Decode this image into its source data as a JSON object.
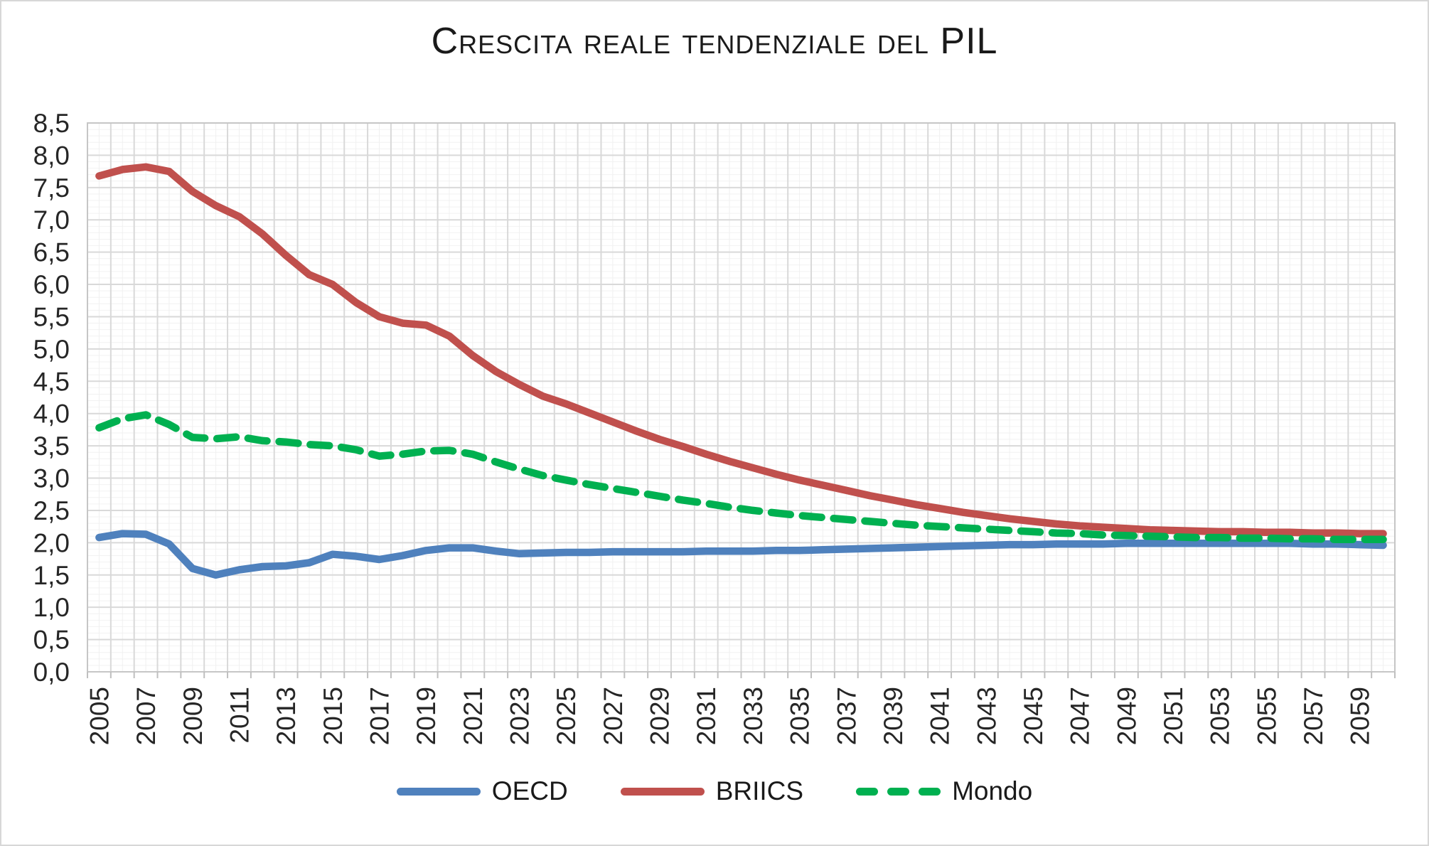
{
  "title": "Crescita reale tendenziale del PIL",
  "chart_data": {
    "type": "line",
    "x": [
      2005,
      2006,
      2007,
      2008,
      2009,
      2010,
      2011,
      2012,
      2013,
      2014,
      2015,
      2016,
      2017,
      2018,
      2019,
      2020,
      2021,
      2022,
      2023,
      2024,
      2025,
      2026,
      2027,
      2028,
      2029,
      2030,
      2031,
      2032,
      2033,
      2034,
      2035,
      2036,
      2037,
      2038,
      2039,
      2040,
      2041,
      2042,
      2043,
      2044,
      2045,
      2046,
      2047,
      2048,
      2049,
      2050,
      2051,
      2052,
      2053,
      2054,
      2055,
      2056,
      2057,
      2058,
      2059,
      2060
    ],
    "x_tick_labels": [
      "2005",
      "2007",
      "2009",
      "2011",
      "2013",
      "2015",
      "2017",
      "2019",
      "2021",
      "2023",
      "2025",
      "2027",
      "2029",
      "2031",
      "2033",
      "2035",
      "2037",
      "2039",
      "2041",
      "2043",
      "2045",
      "2047",
      "2049",
      "2051",
      "2053",
      "2055",
      "2057",
      "2059"
    ],
    "y_tick_labels": [
      "0,0",
      "0,5",
      "1,0",
      "1,5",
      "2,0",
      "2,5",
      "3,0",
      "3,5",
      "4,0",
      "4,5",
      "5,0",
      "5,5",
      "6,0",
      "6,5",
      "7,0",
      "7,5",
      "8,0",
      "8,5"
    ],
    "ylim": [
      0,
      8.5
    ],
    "grid": true,
    "legend_position": "bottom",
    "series": [
      {
        "name": "OECD",
        "color": "#4F81BD",
        "style": "solid",
        "values": [
          2.08,
          2.14,
          2.13,
          1.98,
          1.6,
          1.5,
          1.58,
          1.63,
          1.64,
          1.69,
          1.82,
          1.79,
          1.74,
          1.8,
          1.88,
          1.92,
          1.92,
          1.87,
          1.83,
          1.84,
          1.85,
          1.85,
          1.86,
          1.86,
          1.86,
          1.86,
          1.87,
          1.87,
          1.87,
          1.88,
          1.88,
          1.89,
          1.9,
          1.91,
          1.92,
          1.93,
          1.94,
          1.95,
          1.96,
          1.97,
          1.97,
          1.98,
          1.98,
          1.98,
          1.99,
          1.99,
          1.99,
          1.99,
          1.99,
          1.99,
          1.99,
          1.99,
          1.98,
          1.98,
          1.97,
          1.96
        ]
      },
      {
        "name": "BRIICS",
        "color": "#C0504D",
        "style": "solid",
        "values": [
          7.68,
          7.78,
          7.82,
          7.75,
          7.44,
          7.22,
          7.05,
          6.78,
          6.45,
          6.15,
          6.0,
          5.72,
          5.5,
          5.4,
          5.37,
          5.2,
          4.9,
          4.65,
          4.45,
          4.27,
          4.15,
          4.01,
          3.87,
          3.73,
          3.6,
          3.49,
          3.37,
          3.26,
          3.16,
          3.06,
          2.97,
          2.89,
          2.81,
          2.73,
          2.66,
          2.59,
          2.53,
          2.47,
          2.42,
          2.37,
          2.33,
          2.29,
          2.26,
          2.24,
          2.22,
          2.2,
          2.19,
          2.18,
          2.17,
          2.17,
          2.16,
          2.16,
          2.15,
          2.15,
          2.14,
          2.14
        ]
      },
      {
        "name": "Mondo",
        "color": "#00B050",
        "style": "dashed",
        "values": [
          3.78,
          3.92,
          3.98,
          3.83,
          3.63,
          3.61,
          3.64,
          3.58,
          3.56,
          3.52,
          3.5,
          3.44,
          3.34,
          3.37,
          3.42,
          3.43,
          3.37,
          3.25,
          3.14,
          3.04,
          2.97,
          2.9,
          2.84,
          2.78,
          2.72,
          2.66,
          2.61,
          2.55,
          2.5,
          2.46,
          2.42,
          2.39,
          2.36,
          2.33,
          2.3,
          2.27,
          2.25,
          2.23,
          2.21,
          2.19,
          2.17,
          2.15,
          2.14,
          2.12,
          2.11,
          2.1,
          2.09,
          2.08,
          2.08,
          2.07,
          2.07,
          2.06,
          2.06,
          2.05,
          2.05,
          2.05
        ]
      }
    ]
  }
}
